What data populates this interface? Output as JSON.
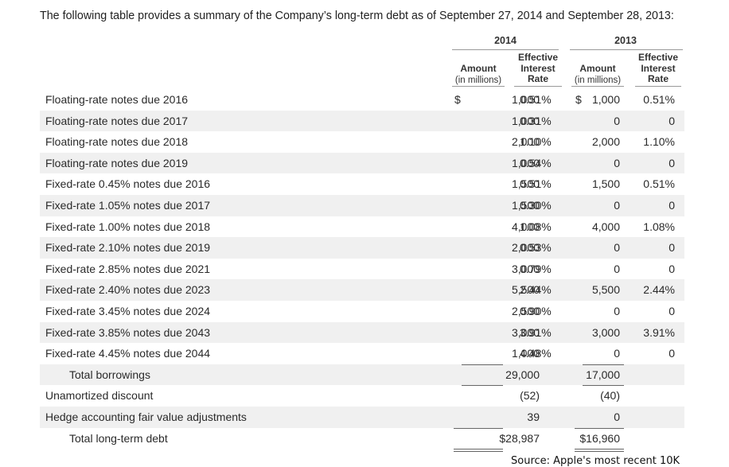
{
  "intro": "The following table provides a summary of the Company’s long-term debt as of September 27, 2014 and September 28, 2013:",
  "years": [
    "2014",
    "2013"
  ],
  "headers": {
    "amount": "Amount",
    "amount_sub": "(in millions)",
    "eff1": "Effective",
    "eff2": "Interest",
    "eff3": "Rate"
  },
  "rows": [
    {
      "label": "Floating-rate notes due 2016",
      "a14": "1,000",
      "r14": "0.51%",
      "a13": "1,000",
      "r13": "0.51%"
    },
    {
      "label": "Floating-rate notes due 2017",
      "a14": "1,000",
      "r14": "0.31%",
      "a13": "0",
      "r13": "0"
    },
    {
      "label": "Floating-rate notes due 2018",
      "a14": "2,000",
      "r14": "1.10%",
      "a13": "2,000",
      "r13": "1.10%"
    },
    {
      "label": "Floating-rate notes due 2019",
      "a14": "1,000",
      "r14": "0.54%",
      "a13": "0",
      "r13": "0"
    },
    {
      "label": "Fixed-rate 0.45% notes due 2016",
      "a14": "1,500",
      "r14": "0.51%",
      "a13": "1,500",
      "r13": "0.51%"
    },
    {
      "label": "Fixed-rate 1.05% notes due 2017",
      "a14": "1,500",
      "r14": "0.30%",
      "a13": "0",
      "r13": "0"
    },
    {
      "label": "Fixed-rate 1.00% notes due 2018",
      "a14": "4,000",
      "r14": "1.08%",
      "a13": "4,000",
      "r13": "1.08%"
    },
    {
      "label": "Fixed-rate 2.10% notes due 2019",
      "a14": "2,000",
      "r14": "0.53%",
      "a13": "0",
      "r13": "0"
    },
    {
      "label": "Fixed-rate 2.85% notes due 2021",
      "a14": "3,000",
      "r14": "0.79%",
      "a13": "0",
      "r13": "0"
    },
    {
      "label": "Fixed-rate 2.40% notes due 2023",
      "a14": "5,500",
      "r14": "2.44%",
      "a13": "5,500",
      "r13": "2.44%"
    },
    {
      "label": "Fixed-rate 3.45% notes due 2024",
      "a14": "2,500",
      "r14": "0.90%",
      "a13": "0",
      "r13": "0"
    },
    {
      "label": "Fixed-rate 3.85% notes due 2043",
      "a14": "3,000",
      "r14": "3.91%",
      "a13": "3,000",
      "r13": "3.91%"
    },
    {
      "label": "Fixed-rate 4.45% notes due 2044",
      "a14": "1,000",
      "r14": "4.48%",
      "a13": "0",
      "r13": "0"
    },
    {
      "label": "Total borrowings",
      "a14": "29,000",
      "r14": "",
      "a13": "17,000",
      "r13": ""
    },
    {
      "label": "Unamortized discount",
      "a14": "(52)",
      "r14": "",
      "a13": "(40)",
      "r13": ""
    },
    {
      "label": "Hedge accounting fair value adjustments",
      "a14": "39",
      "r14": "",
      "a13": "0",
      "r13": ""
    },
    {
      "label": "Total long-term debt",
      "a14": "$28,987",
      "r14": "",
      "a13": "$16,960",
      "r13": ""
    }
  ],
  "currency_symbol": "$",
  "source": "Source: Apple's most recent 10K"
}
